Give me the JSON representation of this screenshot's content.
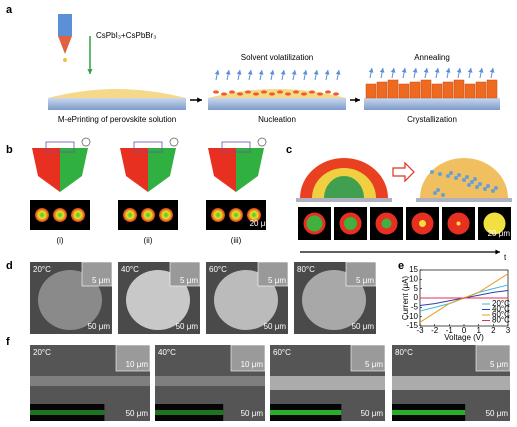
{
  "a": {
    "label": "a",
    "reagent": "CsPbI₃+CsPbBr₃",
    "step1": "M-ePrinting of perovskite solution",
    "step2_top": "Solvent volatilization",
    "step2_bottom": "Nucleation",
    "step3_top": "Annealing",
    "step3_bottom": "Crystallization"
  },
  "b": {
    "label": "b",
    "cases": [
      "(i)",
      "(ii)",
      "(iii)"
    ],
    "scale": "20 μm"
  },
  "c": {
    "label": "c",
    "scale": "20 μm",
    "axis": "t"
  },
  "d": {
    "label": "d",
    "temps": [
      "20°C",
      "40°C",
      "60°C",
      "80°C"
    ],
    "inset_scales": [
      "5 μm",
      "5 μm",
      "5 μm",
      "5 μm"
    ],
    "scales": [
      "50 μm",
      "50 μm",
      "50 μm",
      "50 μm"
    ]
  },
  "chart_data": {
    "type": "line",
    "label": "e",
    "x_label": "Voltage (V)",
    "y_label": "Current (μA)",
    "x": [
      -3,
      -2,
      -1,
      0,
      1,
      2,
      3
    ],
    "series": [
      {
        "name": "20°C",
        "color": "#3fb6e0",
        "values": [
          -7,
          -5,
          -3,
          0,
          3,
          5,
          7
        ]
      },
      {
        "name": "40°C",
        "color": "#2a3fb8",
        "values": [
          -4,
          -3,
          -1.5,
          0,
          1.5,
          3,
          4
        ]
      },
      {
        "name": "60°C",
        "color": "#e0a020",
        "values": [
          -13,
          -8,
          -3,
          0,
          3,
          8,
          13
        ]
      },
      {
        "name": "80°C",
        "color": "#e03050",
        "values": [
          0,
          0,
          0,
          0,
          0,
          0,
          0
        ]
      }
    ],
    "xlim": [
      -3,
      3
    ],
    "xticks": [
      -3,
      -2,
      -1,
      0,
      1,
      2,
      3
    ],
    "ylim": [
      -15,
      15
    ],
    "yticks": [
      -15,
      -10,
      -5,
      0,
      5,
      10,
      15
    ]
  },
  "f": {
    "label": "f",
    "temps": [
      "20°C",
      "40°C",
      "60°C",
      "80°C"
    ],
    "inset_scales": [
      "10 μm",
      "10 μm",
      "5 μm",
      "5 μm"
    ],
    "scales": [
      "50 μm",
      "50 μm",
      "50 μm",
      "50 μm"
    ]
  }
}
